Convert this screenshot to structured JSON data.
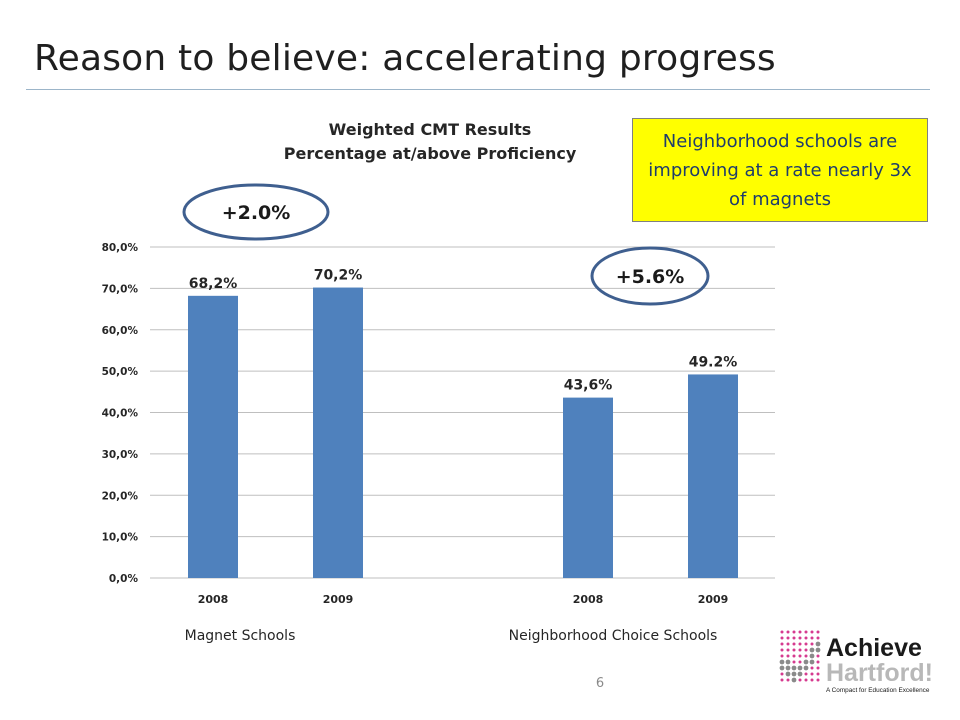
{
  "slide": {
    "title": "Reason to believe: accelerating progress",
    "page_number": "6"
  },
  "callout": {
    "text": "Neighborhood schools are improving at a rate nearly 3x of magnets"
  },
  "logo": {
    "line1": "Achieve",
    "line2": "Hartford!",
    "tagline": "A Compact for Education Excellence",
    "icon": "checkmark-dots-icon"
  },
  "chart_data": {
    "type": "bar",
    "title": "Weighted CMT Results",
    "subtitle": "Percentage at/above Proficiency",
    "ylim": [
      0,
      80
    ],
    "yticks": [
      0,
      10,
      20,
      30,
      40,
      50,
      60,
      70,
      80
    ],
    "ytick_labels": [
      "0,0%",
      "10,0%",
      "20,0%",
      "30,0%",
      "40,0%",
      "50,0%",
      "60,0%",
      "70,0%",
      "80,0%"
    ],
    "grid": true,
    "groups": [
      {
        "name": "Magnet Schools",
        "categories": [
          "2008",
          "2009"
        ],
        "values": [
          68.2,
          70.2
        ],
        "labels": [
          "68,2%",
          "70,2%"
        ],
        "change_label": "+2.0%"
      },
      {
        "name": "Neighborhood Choice Schools",
        "categories": [
          "2008",
          "2009"
        ],
        "values": [
          43.6,
          49.2
        ],
        "labels": [
          "43,6%",
          "49.2%"
        ],
        "change_label": "+5.6%"
      }
    ],
    "colors": {
      "bar": "#4f81bd",
      "oval": "#3f5f8f",
      "grid": "#bfbfbf"
    }
  }
}
